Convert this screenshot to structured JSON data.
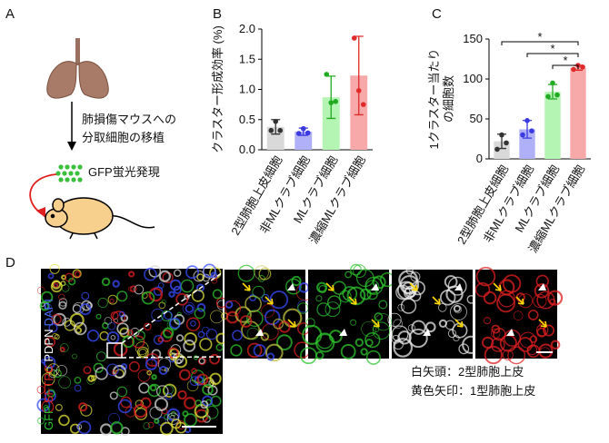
{
  "panel_a": {
    "label": "A",
    "steps": [
      "肺損傷マウスへの",
      "分取細胞の移植"
    ],
    "gfp": "GFP蛍光発現"
  },
  "panel_labels": {
    "b": "B",
    "c": "C",
    "d": "D"
  },
  "chart_data": [
    {
      "type": "bar",
      "y_label": [
        "クラスター形成効率 (%)"
      ],
      "categories": [
        "2型肺胞上皮細胞",
        "非MLクラブ細胞",
        "MLクラブ細胞",
        "濃縮MLクラブ細胞"
      ],
      "values": [
        0.38,
        0.3,
        0.87,
        1.23
      ],
      "errors": [
        0.12,
        0.06,
        0.35,
        0.65
      ],
      "points": [
        [
          0.32,
          0.47,
          0.32
        ],
        [
          0.27,
          0.35,
          0.28
        ],
        [
          1.25,
          0.78,
          0.8
        ],
        [
          1.85,
          0.98,
          0.75
        ]
      ],
      "colors": [
        "#d9d9d9",
        "#b0b0f8",
        "#b4f5b4",
        "#f7a9a9"
      ],
      "point_colors": [
        "#333333",
        "#3a3ae0",
        "#22aa22",
        "#e02a2a"
      ],
      "ylim": [
        0,
        2
      ],
      "yticks": [
        {
          "value": 0,
          "label": "0.0"
        },
        {
          "value": 0.5,
          "label": "0.5"
        },
        {
          "value": 1,
          "label": "1.0"
        },
        {
          "value": 1.5,
          "label": "1.5"
        },
        {
          "value": 2,
          "label": "2.0"
        }
      ]
    },
    {
      "type": "bar",
      "y_label": [
        "1クラスター当たり",
        "の細胞数"
      ],
      "categories": [
        "2型肺胞上皮細胞",
        "非MLクラブ細胞",
        "MLクラブ細胞",
        "濃縮MLクラブ細胞"
      ],
      "values": [
        22,
        37,
        84,
        114
      ],
      "errors": [
        9,
        11,
        9,
        3
      ],
      "points": [
        [
          12,
          30,
          20
        ],
        [
          30,
          48,
          35
        ],
        [
          78,
          95,
          80
        ],
        [
          112,
          117,
          115
        ]
      ],
      "colors": [
        "#d9d9d9",
        "#b0b0f8",
        "#b4f5b4",
        "#f7a9a9"
      ],
      "point_colors": [
        "#333333",
        "#3a3ae0",
        "#22aa22",
        "#e02a2a"
      ],
      "ylim": [
        0,
        150
      ],
      "yticks": [
        0,
        50,
        100,
        150
      ],
      "annotations": [
        {
          "label": "*",
          "categories": [
            0,
            3
          ]
        },
        {
          "label": "*",
          "categories": [
            1,
            3
          ]
        },
        {
          "label": "*",
          "categories": [
            2,
            3
          ]
        }
      ]
    }
  ],
  "panel_d": {
    "channels": [
      {
        "name": "GFP",
        "color": "#2fc42f"
      },
      {
        "name": "SFTPC",
        "color": "#e02020"
      },
      {
        "name": "PDPN",
        "color": "#ffffff"
      },
      {
        "name": "DAPI",
        "color": "#4a6cff"
      }
    ],
    "legend": [
      "白矢頭：2型肺胞上皮",
      "黄色矢印：1型肺胞上皮"
    ]
  }
}
